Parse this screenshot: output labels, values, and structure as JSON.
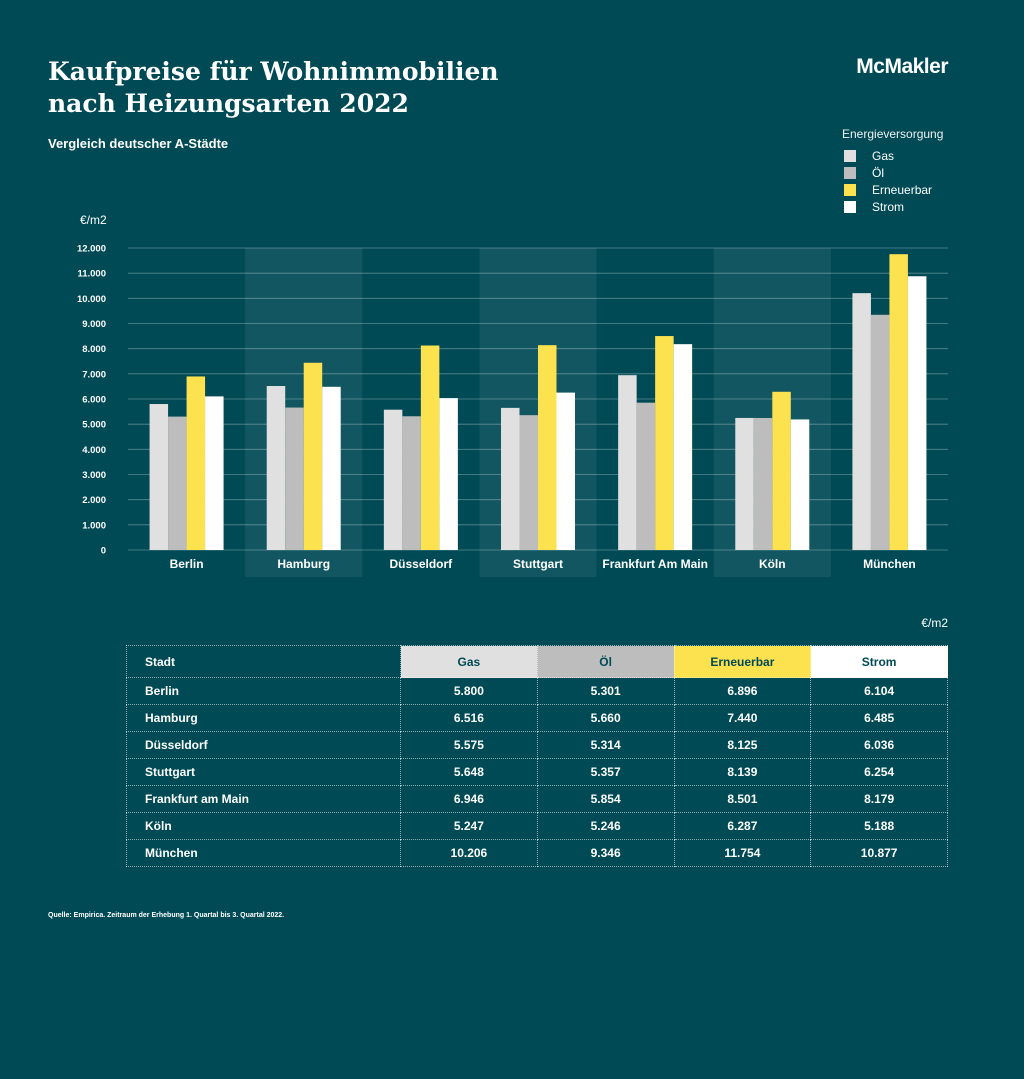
{
  "header": {
    "title_line1": "Kaufpreise für Wohnimmobilien",
    "title_line2": "nach Heizungsarten 2022",
    "subtitle": "Vergleich deutscher A-Städte",
    "logo": "McMakler"
  },
  "legend": {
    "title": "Energieversorgung",
    "items": [
      {
        "label": "Gas",
        "color": "#e0e0e0"
      },
      {
        "label": "Öl",
        "color": "#bdbdbd"
      },
      {
        "label": "Erneuerbar",
        "color": "#fde24f"
      },
      {
        "label": "Strom",
        "color": "#ffffff"
      }
    ]
  },
  "chart_data": {
    "type": "bar",
    "title": "Kaufpreise für Wohnimmobilien nach Heizungsarten 2022",
    "subtitle": "Vergleich deutscher A-Städte",
    "ylabel": "€/m2",
    "ylim": [
      0,
      12000
    ],
    "yticks": [
      0,
      1000,
      2000,
      3000,
      4000,
      5000,
      6000,
      7000,
      8000,
      9000,
      10000,
      11000,
      12000
    ],
    "ytick_labels": [
      "0",
      "1.000",
      "2.000",
      "3.000",
      "4.000",
      "5.000",
      "6.000",
      "7.000",
      "8.000",
      "9.000",
      "10.000",
      "11.000",
      "12.000"
    ],
    "categories": [
      "Berlin",
      "Hamburg",
      "Düsseldorf",
      "Stuttgart",
      "Frankfurt Am Main",
      "Köln",
      "München"
    ],
    "legend_title": "Energieversorgung",
    "legend_position": "top-right",
    "grid": true,
    "series": [
      {
        "name": "Gas",
        "color": "#e0e0e0",
        "values": [
          5800,
          6516,
          5575,
          5648,
          6946,
          5247,
          10206
        ]
      },
      {
        "name": "Öl",
        "color": "#bdbdbd",
        "values": [
          5301,
          5660,
          5314,
          5357,
          5854,
          5246,
          9346
        ]
      },
      {
        "name": "Erneuerbar",
        "color": "#fde24f",
        "values": [
          6896,
          7440,
          8125,
          8139,
          8501,
          6287,
          11754
        ]
      },
      {
        "name": "Strom",
        "color": "#ffffff",
        "values": [
          6104,
          6485,
          6036,
          6254,
          8179,
          5188,
          10877
        ]
      }
    ]
  },
  "table": {
    "unit": "€/m2",
    "headers": [
      "Stadt",
      "Gas",
      "Öl",
      "Erneuerbar",
      "Strom"
    ],
    "header_colors": [
      "#004a55",
      "#e0e0e0",
      "#bdbdbd",
      "#fde24f",
      "#ffffff"
    ],
    "rows": [
      [
        "Berlin",
        "5.800",
        "5.301",
        "6.896",
        "6.104"
      ],
      [
        "Hamburg",
        "6.516",
        "5.660",
        "7.440",
        "6.485"
      ],
      [
        "Düsseldorf",
        "5.575",
        "5.314",
        "8.125",
        "6.036"
      ],
      [
        "Stuttgart",
        "5.648",
        "5.357",
        "8.139",
        "6.254"
      ],
      [
        "Frankfurt am Main",
        "6.946",
        "5.854",
        "8.501",
        "8.179"
      ],
      [
        "Köln",
        "5.247",
        "5.246",
        "6.287",
        "5.188"
      ],
      [
        "München",
        "10.206",
        "9.346",
        "11.754",
        "10.877"
      ]
    ]
  },
  "footer": {
    "source": "Quelle: Empirica. Zeitraum der Erhebung 1. Quartal bis 3. Quartal 2022."
  }
}
